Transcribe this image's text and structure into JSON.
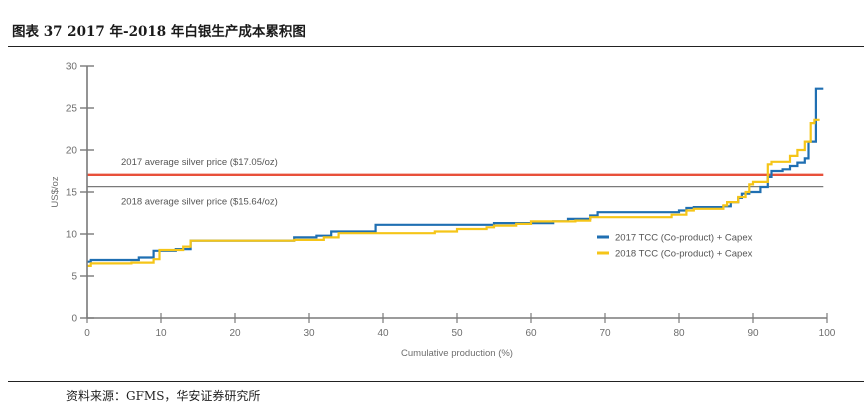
{
  "header": {
    "title": "图表 37 2017 年-2018 年白银生产成本累积图"
  },
  "footer": {
    "source": "资料来源：GFMS，华安证券研究所"
  },
  "chart_data": {
    "type": "line",
    "step": true,
    "xlabel": "Cumulative production (%)",
    "ylabel": "US$/oz",
    "xlim": [
      0,
      100
    ],
    "ylim": [
      0,
      30
    ],
    "x_ticks": [
      0,
      10,
      20,
      30,
      40,
      50,
      60,
      70,
      80,
      90,
      100
    ],
    "y_ticks": [
      0,
      5,
      10,
      15,
      20,
      25,
      30
    ],
    "grid": false,
    "legend_position": "right",
    "reference_lines": [
      {
        "label": "2017 average silver price ($17.05/oz)",
        "value": 17.05,
        "color": "#e8503a"
      },
      {
        "label": "2018 average silver price ($15.64/oz)",
        "value": 15.64,
        "color": "#7a7a7a"
      }
    ],
    "series": [
      {
        "name": "2017 TCC (Co-product) + Capex",
        "color": "#1f6fb2",
        "points": [
          [
            0,
            6.7
          ],
          [
            0.5,
            6.9
          ],
          [
            7,
            7.2
          ],
          [
            9,
            8.0
          ],
          [
            12,
            8.2
          ],
          [
            14,
            9.2
          ],
          [
            28,
            9.6
          ],
          [
            31,
            9.8
          ],
          [
            33,
            10.3
          ],
          [
            39,
            11.1
          ],
          [
            55,
            11.3
          ],
          [
            63,
            11.5
          ],
          [
            65,
            11.8
          ],
          [
            68,
            12.2
          ],
          [
            69,
            12.6
          ],
          [
            80,
            12.8
          ],
          [
            81,
            13.1
          ],
          [
            82,
            13.2
          ],
          [
            86,
            13.3
          ],
          [
            87,
            13.8
          ],
          [
            88,
            14.3
          ],
          [
            88.5,
            14.8
          ],
          [
            89.5,
            15.0
          ],
          [
            91,
            15.6
          ],
          [
            92,
            16.8
          ],
          [
            92.5,
            17.5
          ],
          [
            94,
            17.7
          ],
          [
            95,
            18.1
          ],
          [
            96,
            18.5
          ],
          [
            97,
            19.0
          ],
          [
            97.5,
            21.0
          ],
          [
            98.5,
            27.3
          ],
          [
            99.5,
            27.3
          ]
        ]
      },
      {
        "name": "2018 TCC (Co-product) + Capex",
        "color": "#f5c518",
        "points": [
          [
            0,
            6.2
          ],
          [
            0.5,
            6.5
          ],
          [
            6,
            6.6
          ],
          [
            9,
            7.0
          ],
          [
            9.8,
            8.1
          ],
          [
            13,
            8.5
          ],
          [
            14,
            9.2
          ],
          [
            28,
            9.3
          ],
          [
            32,
            9.6
          ],
          [
            34,
            10.1
          ],
          [
            47,
            10.3
          ],
          [
            50,
            10.6
          ],
          [
            54,
            10.8
          ],
          [
            55,
            11.0
          ],
          [
            58,
            11.2
          ],
          [
            60,
            11.5
          ],
          [
            66,
            11.6
          ],
          [
            68,
            12.0
          ],
          [
            79,
            12.3
          ],
          [
            81,
            12.8
          ],
          [
            82,
            13.0
          ],
          [
            86,
            13.4
          ],
          [
            86.5,
            13.8
          ],
          [
            88,
            14.4
          ],
          [
            89,
            15.0
          ],
          [
            89.5,
            15.9
          ],
          [
            90,
            16.2
          ],
          [
            92,
            18.3
          ],
          [
            92.5,
            18.6
          ],
          [
            95,
            19.3
          ],
          [
            96,
            20.0
          ],
          [
            97,
            21.0
          ],
          [
            97.8,
            23.2
          ],
          [
            98.3,
            23.6
          ],
          [
            99,
            23.6
          ]
        ]
      }
    ]
  }
}
